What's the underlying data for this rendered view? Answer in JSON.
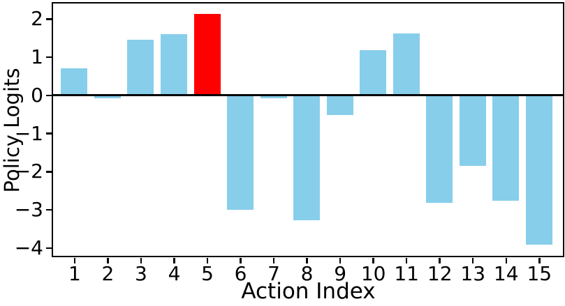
{
  "chart_data": {
    "type": "bar",
    "xlabel": "Action Index",
    "ylabel": "Policy Logits",
    "categories": [
      "1",
      "2",
      "3",
      "4",
      "5",
      "6",
      "7",
      "8",
      "9",
      "10",
      "11",
      "12",
      "13",
      "14",
      "15"
    ],
    "values": [
      0.7,
      -0.08,
      1.45,
      1.6,
      2.12,
      -3.0,
      -0.08,
      -3.27,
      -0.52,
      1.17,
      1.62,
      -2.82,
      -1.86,
      -2.76,
      -3.91
    ],
    "bar_color": "#87ceeb",
    "highlight": {
      "category": "5",
      "color": "#ff0000"
    },
    "yticks": [
      {
        "value": 2,
        "label": "2"
      },
      {
        "value": 1,
        "label": "1"
      },
      {
        "value": 0,
        "label": "0"
      },
      {
        "value": -1,
        "label": "−1"
      },
      {
        "value": -2,
        "label": "−2"
      },
      {
        "value": -3,
        "label": "−3"
      },
      {
        "value": -4,
        "label": "−4"
      }
    ],
    "xlim": [
      0.36,
      15.72
    ],
    "ylim": [
      -4.21,
      2.4
    ],
    "bar_width": 0.8,
    "grid": false,
    "legend": "none",
    "axis_color": "#000000",
    "background_color": "#ffffff"
  }
}
